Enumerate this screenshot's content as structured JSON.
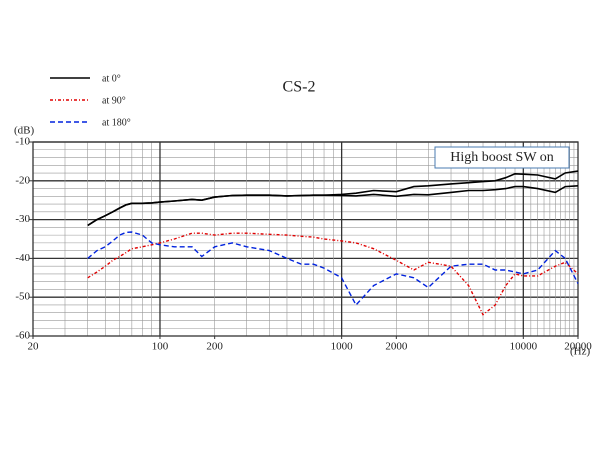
{
  "chart_data": {
    "type": "line",
    "title": "CS-2",
    "y_unit_label": "(dB)",
    "x_unit_label": "(Hz)",
    "annotation": "High boost SW on",
    "log_x": true,
    "grid": true,
    "legend": "top-left",
    "xlim": [
      20,
      20000
    ],
    "ylim": [
      -60,
      -10
    ],
    "xticks": [
      20,
      100,
      200,
      1000,
      2000,
      10000,
      20000
    ],
    "yticks": [
      -60,
      -50,
      -40,
      -30,
      -20,
      -10
    ],
    "xgrid": [
      30,
      40,
      50,
      60,
      70,
      80,
      90,
      100,
      200,
      300,
      400,
      500,
      600,
      700,
      800,
      900,
      1000,
      2000,
      3000,
      4000,
      5000,
      6000,
      7000,
      8000,
      9000,
      10000,
      11000,
      12000,
      13000,
      14000,
      15000,
      16000,
      17000,
      18000,
      19000,
      20000
    ],
    "ygrid": [
      -58,
      -56,
      -54,
      -52,
      -50,
      -48,
      -46,
      -44,
      -42,
      -40,
      -38,
      -36,
      -34,
      -32,
      -30,
      -28,
      -26,
      -24,
      -22,
      -20,
      -18,
      -16,
      -14,
      -12,
      -10
    ],
    "x": [
      40,
      45,
      50,
      55,
      60,
      65,
      70,
      80,
      90,
      100,
      120,
      150,
      170,
      200,
      250,
      300,
      400,
      500,
      600,
      700,
      800,
      1000,
      1200,
      1500,
      2000,
      2500,
      3000,
      4000,
      5000,
      6000,
      7000,
      8000,
      9000,
      10000,
      12000,
      15000,
      17000,
      20000
    ],
    "series": [
      {
        "name": "at 0°",
        "color": "#000000",
        "dash": "solid",
        "values": [
          -31.5,
          -30,
          -29,
          -28,
          -27,
          -26.2,
          -25.8,
          -25.8,
          -25.7,
          -25.5,
          -25.2,
          -24.8,
          -25,
          -24.2,
          -23.8,
          -23.7,
          -23.7,
          -23.9,
          -23.8,
          -23.7,
          -23.7,
          -23.5,
          -23.2,
          -22.5,
          -22.8,
          -21.5,
          -21.3,
          -20.8,
          -20.5,
          -20.2,
          -20,
          -19.2,
          -18.2,
          -18.3,
          -18.5,
          -19.5,
          -18,
          -17.5
        ]
      },
      {
        "name": "at 90°",
        "color": "#e00000",
        "dash": "dashdot",
        "values": [
          -45,
          -43.5,
          -42,
          -40.5,
          -39.5,
          -38.5,
          -37.5,
          -37,
          -36.5,
          -36,
          -35,
          -33.5,
          -33.5,
          -34,
          -33.5,
          -33.5,
          -33.8,
          -34,
          -34.3,
          -34.5,
          -35,
          -35.5,
          -36,
          -37.5,
          -40.5,
          -43,
          -41,
          -42,
          -47,
          -54.5,
          -52,
          -47,
          -44,
          -44.5,
          -44.5,
          -42,
          -41,
          -44
        ]
      },
      {
        "name": "at 180°",
        "color": "#0022dd",
        "dash": "dashed",
        "values": [
          -40,
          -38,
          -37,
          -35.5,
          -34,
          -33.3,
          -33.2,
          -34,
          -36,
          -36.5,
          -37,
          -37,
          -39.5,
          -37,
          -36,
          -37,
          -38,
          -40,
          -41.5,
          -41.5,
          -42.5,
          -45,
          -52,
          -47,
          -44,
          -45,
          -47.5,
          -42,
          -41.5,
          -41.5,
          -43,
          -43,
          -43.5,
          -44,
          -43,
          -38,
          -40,
          -46.5
        ]
      },
      {
        "color": "#000000",
        "dash": "solid",
        "values": [
          -31.5,
          -30,
          -29,
          -28,
          -27,
          -26.2,
          -25.8,
          -25.8,
          -25.7,
          -25.5,
          -25.2,
          -24.8,
          -25,
          -24.2,
          -23.8,
          -23.7,
          -23.7,
          -23.9,
          -23.8,
          -23.7,
          -23.7,
          -23.8,
          -23.9,
          -23.5,
          -24,
          -23.5,
          -23.6,
          -23,
          -22.5,
          -22.5,
          -22.3,
          -22,
          -21.5,
          -21.5,
          -22,
          -23,
          -21.5,
          -21.3
        ]
      }
    ]
  }
}
